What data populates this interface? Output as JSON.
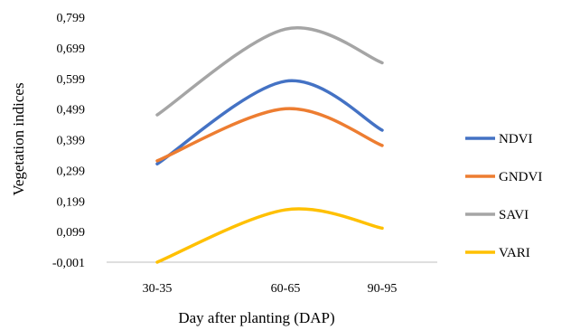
{
  "chart_data": {
    "type": "line",
    "smooth": true,
    "xlabel": "Day after planting (DAP)",
    "ylabel": "Vegetation indices",
    "categories": [
      "30-35",
      "60-65",
      "90-95"
    ],
    "y_ticks": [
      "-0,001",
      "0,099",
      "0,199",
      "0,299",
      "0,399",
      "0,499",
      "0,599",
      "0,699",
      "0,799"
    ],
    "ylim": [
      -0.001,
      0.799
    ],
    "grid": false,
    "legend_position": "right",
    "series": [
      {
        "name": "NDVI",
        "color": "#4472C4",
        "values": [
          0.32,
          0.59,
          0.43
        ]
      },
      {
        "name": "GNDVI",
        "color": "#ED7D31",
        "values": [
          0.33,
          0.5,
          0.38
        ]
      },
      {
        "name": "SAVI",
        "color": "#A5A5A5",
        "values": [
          0.48,
          0.76,
          0.65
        ]
      },
      {
        "name": "VARI",
        "color": "#FFC000",
        "values": [
          -0.001,
          0.17,
          0.11
        ]
      }
    ]
  }
}
